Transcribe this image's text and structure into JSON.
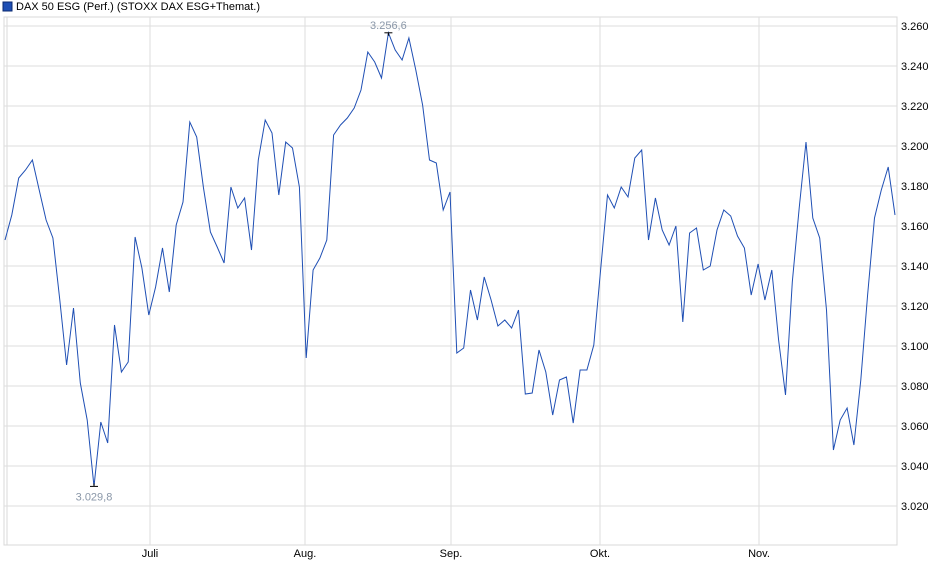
{
  "chart_data": {
    "type": "line",
    "title": "",
    "legend": {
      "position": "top-left",
      "entries": [
        "DAX 50 ESG (Perf.) (STOXX DAX ESG+Themat.)"
      ]
    },
    "series": [
      {
        "name": "DAX 50 ESG (Perf.) (STOXX DAX ESG+Themat.)",
        "color": "#1f4fb4",
        "values": [
          3153,
          3165.5,
          3184,
          3188,
          3193,
          3178,
          3163,
          3154,
          3123,
          3090.5,
          3119,
          3081.5,
          3063,
          3029.8,
          3062,
          3051.5,
          3110.5,
          3087,
          3092,
          3154.5,
          3139,
          3115.5,
          3129.5,
          3149,
          3127,
          3160.5,
          3172,
          3212,
          3204.5,
          3179,
          3157,
          3149.5,
          3141.5,
          3179.5,
          3169,
          3174,
          3148,
          3193,
          3213,
          3206.5,
          3175.5,
          3202,
          3199,
          3179.5,
          3094,
          3138,
          3144,
          3153,
          3205.5,
          3210.5,
          3214,
          3219,
          3228,
          3247,
          3242,
          3234,
          3256.6,
          3248,
          3243,
          3254,
          3238,
          3220.5,
          3193,
          3191.5,
          3168,
          3177,
          3096.5,
          3099,
          3128,
          3113,
          3134.5,
          3123,
          3110,
          3113,
          3109,
          3118,
          3076,
          3076.5,
          3098,
          3087,
          3065.5,
          3083,
          3084.5,
          3061.5,
          3088,
          3088,
          3100.5,
          3138,
          3175.5,
          3169,
          3179.5,
          3174.5,
          3194,
          3198,
          3153,
          3174,
          3158,
          3150.5,
          3160,
          3112,
          3156.5,
          3159,
          3138,
          3140,
          3158,
          3168,
          3165,
          3155,
          3149,
          3125.5,
          3141,
          3123,
          3138,
          3103,
          3075.5,
          3132,
          3169,
          3202,
          3164,
          3154,
          3118,
          3048,
          3063,
          3069,
          3050.5,
          3083,
          3125.5,
          3164,
          3178,
          3189.5,
          3165.5
        ]
      }
    ],
    "y_axis": {
      "position": "right",
      "range": [
        3010,
        3265
      ],
      "ticks": [
        3020,
        3040,
        3060,
        3080,
        3100,
        3120,
        3140,
        3160,
        3180,
        3200,
        3220,
        3240,
        3260
      ],
      "tick_labels": [
        "3.020",
        "3.040",
        "3.060",
        "3.080",
        "3.100",
        "3.120",
        "3.140",
        "3.160",
        "3.180",
        "3.200",
        "3.220",
        "3.240",
        "3.260"
      ]
    },
    "x_axis": {
      "tick_labels": [
        "Juli",
        "Aug.",
        "Sep.",
        "Okt.",
        "Nov."
      ]
    },
    "grid": true,
    "annotations": {
      "max": {
        "value": 3256.6,
        "label": "3.256,6"
      },
      "min": {
        "value": 3029.8,
        "label": "3.029,8"
      }
    }
  }
}
